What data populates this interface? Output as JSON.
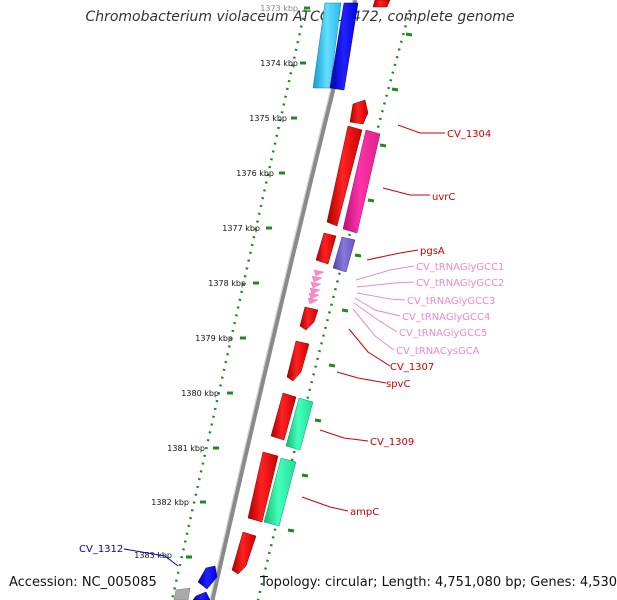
{
  "map": {
    "title": "Chromobacterium violaceum ATCC 12472, complete genome",
    "accession": "Accession: NC_005085",
    "topology": "Topology: circular; Length: 4,751,080 bp; Genes: 4,530"
  },
  "ruler": {
    "ticks": [
      "1373 kbp",
      "1374 kbp",
      "1375 kbp",
      "1376 kbp",
      "1377 kbp",
      "1378 kbp",
      "1379 kbp",
      "1380 kbp",
      "1381 kbp",
      "1382 kbp",
      "1383 kbp"
    ]
  },
  "features": [
    {
      "label": "CV_1304",
      "color": "#cc0000"
    },
    {
      "label": "uvrC",
      "color": "#cc0000"
    },
    {
      "label": "pgsA",
      "color": "#cc0000"
    },
    {
      "label": "CV_tRNAGlyGCC1",
      "color": "#ee88cc"
    },
    {
      "label": "CV_tRNAGlyGCC2",
      "color": "#ee88cc"
    },
    {
      "label": "CV_tRNAGlyGCC3",
      "color": "#ee88cc"
    },
    {
      "label": "CV_tRNAGlyGCC4",
      "color": "#ee88cc"
    },
    {
      "label": "CV_tRNAGlyGCC5",
      "color": "#ee88cc"
    },
    {
      "label": "CV_tRNACysGCA",
      "color": "#ee88cc"
    },
    {
      "label": "CV_1307",
      "color": "#cc0000"
    },
    {
      "label": "spvC",
      "color": "#cc0000"
    },
    {
      "label": "CV_1309",
      "color": "#cc0000"
    },
    {
      "label": "ampC",
      "color": "#cc0000"
    },
    {
      "label": "CV_1312",
      "color": "#0000cc"
    }
  ],
  "colors": {
    "cds_red": "#ff0000",
    "cds_magenta": "#ff2299",
    "cds_slate": "#7766cc",
    "cds_cyan": "#22bbee",
    "cds_blue": "#0000ee",
    "cds_green": "#22ee99",
    "trna_pink": "#ff88cc",
    "backbone": "#8a8a8a",
    "tick_green": "#228822"
  }
}
